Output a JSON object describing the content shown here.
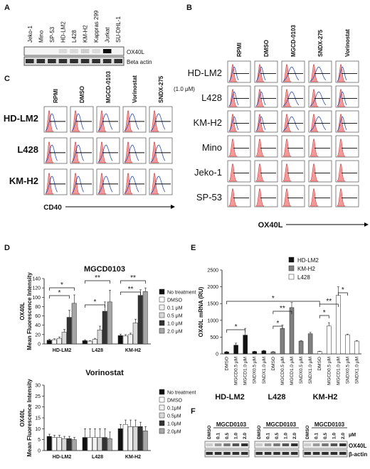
{
  "panels": {
    "A": {
      "letter": "A",
      "lanes": [
        "Jeko-1",
        "Mino",
        "SP-53",
        "HD-LM2",
        "L428",
        "KM-H2",
        "Kappras 299",
        "Jurkat",
        "SU-DHL-1"
      ],
      "rows": [
        "OX40L",
        "Beta actin"
      ],
      "ox40l_intensity": [
        0.05,
        0.05,
        0.05,
        0.1,
        0.1,
        0.15,
        0.1,
        0.95,
        0.05
      ]
    },
    "B": {
      "letter": "B",
      "columns": [
        "RPMI",
        "DMSO",
        "MGCD-0103",
        "SNDX-275",
        "Vorinostat"
      ],
      "rows": [
        "HD-LM2",
        "L428",
        "KM-H2",
        "Mino",
        "Jeko-1",
        "SP-53"
      ],
      "xlabel": "OX40L"
    },
    "C": {
      "letter": "C",
      "columns": [
        "RPMI",
        "DMSO",
        "MGCD-0103",
        "Vorinostat",
        "SNDX-275"
      ],
      "conc": "(1.0 μM)",
      "rows": [
        "HD-LM2",
        "L428",
        "KM-H2"
      ],
      "xlabel": "CD40"
    },
    "D": {
      "letter": "D"
    },
    "E": {
      "letter": "E"
    },
    "F": {
      "letter": "F",
      "groups": [
        {
          "name": "HD-LM2",
          "drug": "MGCD0103",
          "lanes": [
            "DMSO",
            "0.1",
            "0.5",
            "1.0",
            "2.0"
          ]
        },
        {
          "name": "L428",
          "drug": "MGCD0103",
          "lanes": [
            "DMSO",
            "0.1",
            "0.5",
            "1.0",
            "2.0"
          ]
        },
        {
          "name": "KM-H2",
          "drug": "MGCD0103",
          "lanes": [
            "DMSO",
            "0.1",
            "0.5",
            "1.0",
            "2.0"
          ]
        }
      ],
      "unit": "μM",
      "rows": [
        "OX40L",
        "β-actin"
      ]
    }
  },
  "chart_data": [
    {
      "id": "D1",
      "type": "bar",
      "title": "MGCD0103",
      "ylabel": "OX40L",
      "ylabel2": "Mean Fluorescence Intensity",
      "ylim": [
        0,
        140
      ],
      "yticks": [
        0,
        20,
        40,
        60,
        80,
        100,
        120,
        140
      ],
      "categories": [
        "HD-LM2",
        "L428",
        "KM-H2"
      ],
      "series": [
        {
          "name": "No treatment",
          "color": "#111111",
          "values": [
            8,
            7,
            18
          ]
        },
        {
          "name": "DMSO",
          "color": "#ffffff",
          "values": [
            9,
            6,
            17
          ]
        },
        {
          "name": "0.1 μM",
          "color": "#f2f2f2",
          "values": [
            12,
            10,
            20
          ]
        },
        {
          "name": "0.5 μM",
          "color": "#d9d9d9",
          "values": [
            25,
            30,
            45
          ]
        },
        {
          "name": "1.0 μM",
          "color": "#333333",
          "values": [
            57,
            70,
            104
          ]
        },
        {
          "name": "2.0 μM",
          "color": "#a6a6a6",
          "values": [
            87,
            90,
            112
          ]
        }
      ],
      "errors": [
        [
          2,
          2,
          3
        ],
        [
          2,
          1,
          3
        ],
        [
          3,
          2,
          3
        ],
        [
          6,
          8,
          8
        ],
        [
          15,
          20,
          12
        ],
        [
          18,
          25,
          8
        ]
      ],
      "stars": [
        "*",
        "*",
        "**",
        "*",
        "**",
        "**"
      ]
    },
    {
      "id": "D2",
      "type": "bar",
      "title": "Vorinostat",
      "ylabel": "OX40L",
      "ylabel2": "Mean Fluorescence Intensity",
      "ylim": [
        0,
        30
      ],
      "yticks": [
        0,
        5,
        10,
        15,
        20,
        25,
        30
      ],
      "categories": [
        "HD-LM2",
        "L428",
        "KM-H2"
      ],
      "series": [
        {
          "name": "No treatment",
          "color": "#111111",
          "values": [
            6.5,
            6,
            10
          ]
        },
        {
          "name": "DMSO",
          "color": "#ffffff",
          "values": [
            6,
            6,
            12
          ]
        },
        {
          "name": "0.1μM",
          "color": "#f2f2f2",
          "values": [
            6,
            6,
            11
          ]
        },
        {
          "name": "0.5μM",
          "color": "#d9d9d9",
          "values": [
            5.5,
            6,
            11
          ]
        },
        {
          "name": "1.0μM",
          "color": "#333333",
          "values": [
            5.5,
            6,
            11
          ]
        },
        {
          "name": "2.0μM",
          "color": "#a6a6a6",
          "values": [
            5,
            5.5,
            9
          ]
        }
      ],
      "errors": [
        [
          1,
          4,
          2
        ],
        [
          1,
          4,
          2
        ],
        [
          1,
          4,
          3
        ],
        [
          1,
          4,
          3
        ],
        [
          1,
          4,
          2
        ],
        [
          1,
          3,
          2
        ]
      ]
    },
    {
      "id": "E",
      "type": "bar",
      "ylabel": "OX40L mRNA (RU)",
      "ylim": [
        0,
        2500
      ],
      "yticks": [
        0,
        500,
        1000,
        1500,
        2000,
        2500
      ],
      "series": [
        {
          "name": "HD-LM2",
          "color": "#111111"
        },
        {
          "name": "KM-H2",
          "color": "#808080"
        },
        {
          "name": "L428",
          "color": "#ffffff"
        }
      ],
      "categories": [
        "DMSO",
        "MGCD0.5 μM",
        "MGCD1.0 μM",
        "SNDX0.5 μM",
        "SNDX1.0 μM",
        "DMSO",
        "MGCD0.5 μM",
        "MGCD1.0 μM",
        "SNDX0.5 μM",
        "SNDX1.0 μM",
        "DMSO",
        "MGCD0.5 μM",
        "MGCD1.0 μM",
        "SNDX0.5 μM",
        "SNDX1.0 μM"
      ],
      "values": [
        60,
        260,
        560,
        70,
        90,
        60,
        760,
        1380,
        380,
        600,
        70,
        830,
        1750,
        570,
        380
      ],
      "bar_series": [
        0,
        0,
        0,
        0,
        0,
        1,
        1,
        1,
        1,
        1,
        2,
        2,
        2,
        2,
        2
      ],
      "errors": [
        10,
        60,
        200,
        10,
        15,
        10,
        100,
        150,
        20,
        40,
        10,
        100,
        250,
        20,
        20
      ],
      "stars": [
        "*",
        "*",
        "**",
        "*",
        "*",
        "**"
      ]
    }
  ]
}
